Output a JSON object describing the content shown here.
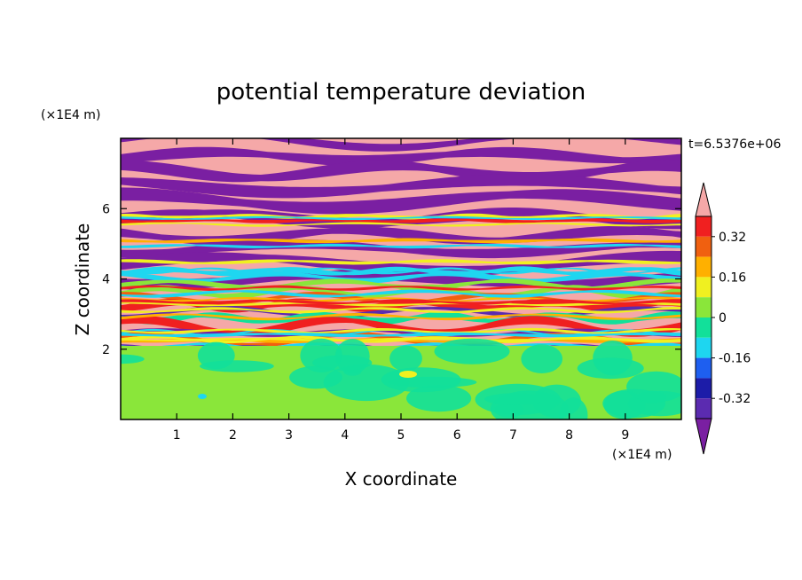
{
  "chart_data": {
    "type": "heatmap",
    "title": "potential temperature deviation",
    "xlabel": "X coordinate",
    "ylabel": "Z coordinate",
    "x_unit": "(×1E4 m)",
    "y_unit": "(×1E4 m)",
    "time_label": "t=6.5376e+06",
    "xlim": [
      0,
      10
    ],
    "ylim": [
      0,
      8
    ],
    "x_ticks": [
      1,
      2,
      3,
      4,
      5,
      6,
      7,
      8,
      9
    ],
    "y_ticks": [
      2,
      4,
      6
    ],
    "colorbar": {
      "levels": [
        {
          "color": "#7a1fa2"
        },
        {
          "color": "#5b2bb0"
        },
        {
          "color": "#1c1ca8"
        },
        {
          "color": "#1e5ff0"
        },
        {
          "color": "#1ed6f0"
        },
        {
          "color": "#12e09a"
        },
        {
          "color": "#8ae63a"
        },
        {
          "color": "#f0f020"
        },
        {
          "color": "#ffb000"
        },
        {
          "color": "#f06010"
        },
        {
          "color": "#f02020"
        },
        {
          "color": "#f5a8a8"
        }
      ],
      "tick_labels": [
        "0.32",
        "0.16",
        "0",
        "-0.16",
        "-0.32"
      ]
    },
    "description_layers": {
      "lower_region_z_max": 2.0,
      "lower_region_dominant_values": [
        0,
        0.08
      ],
      "upper_region_banded_values": [
        -0.4,
        0.4
      ]
    }
  }
}
